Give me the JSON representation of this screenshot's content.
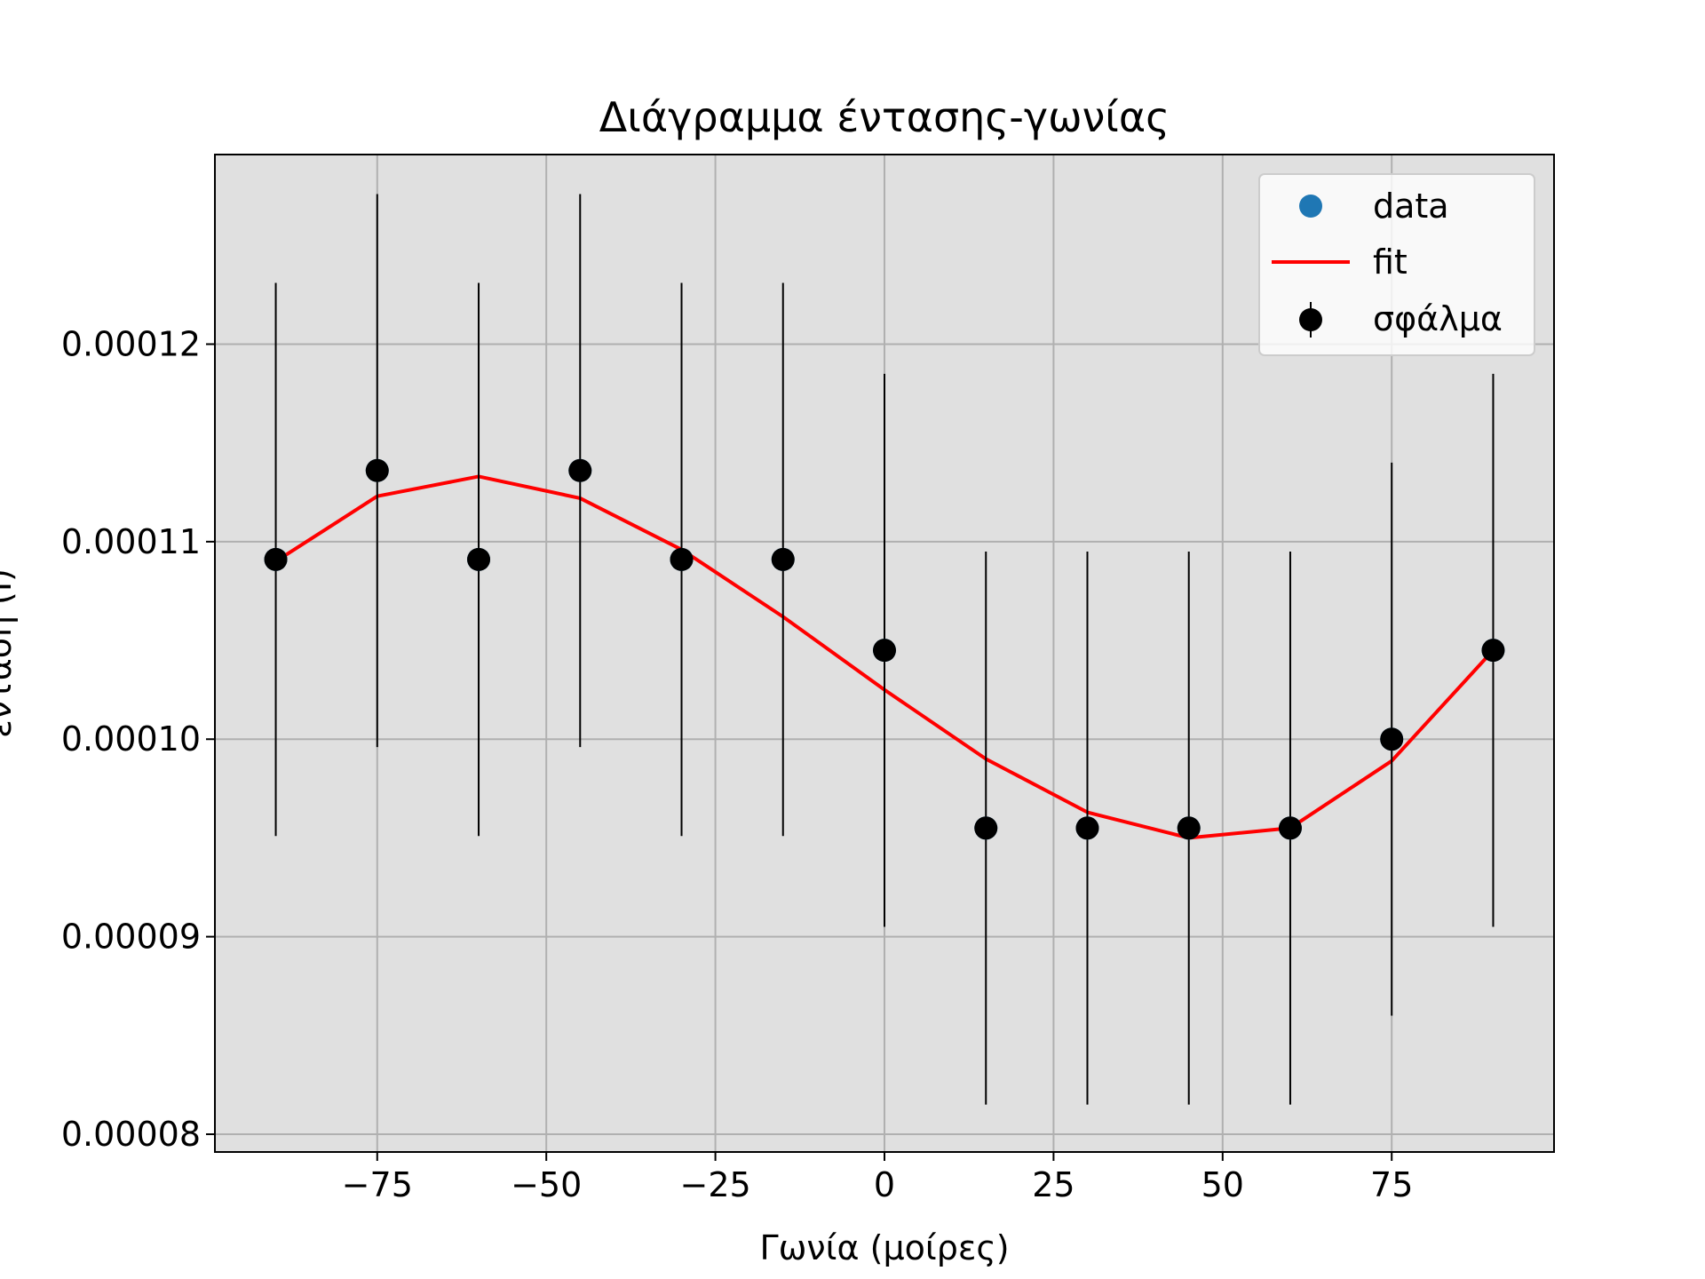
{
  "chart_data": {
    "type": "scatter",
    "title": "Διάγραμμα έντασης-γωνίας",
    "xlabel": "Γωνία (μοίρες)",
    "ylabel": "ένταση (I)",
    "xlim": [
      -99,
      99
    ],
    "ylim": [
      7.91e-05,
      0.0001296
    ],
    "xticks": [
      -75,
      -50,
      -25,
      0,
      25,
      50,
      75
    ],
    "xtick_labels": [
      "−75",
      "−50",
      "−25",
      "0",
      "25",
      "50",
      "75"
    ],
    "yticks": [
      8e-05,
      9e-05,
      0.0001,
      0.00011,
      0.00012
    ],
    "ytick_labels": [
      "0.00008",
      "0.00009",
      "0.00010",
      "0.00011",
      "0.00012"
    ],
    "grid": true,
    "background": "#e0e0e0",
    "legend_position": "top-right",
    "series": [
      {
        "name": "data",
        "kind": "scatter",
        "color": "#1f77b4",
        "x": [
          -90,
          -75,
          -60,
          -45,
          -30,
          -15,
          0,
          15,
          30,
          45,
          60,
          75,
          90
        ],
        "y": [
          0.0001091,
          0.0001136,
          0.0001091,
          0.0001136,
          0.0001091,
          0.0001091,
          0.0001045,
          9.55e-05,
          9.55e-05,
          9.55e-05,
          9.55e-05,
          0.0001,
          0.0001045
        ]
      },
      {
        "name": "fit",
        "kind": "line",
        "color": "#ff0000",
        "x": [
          -90,
          -75,
          -60,
          -45,
          -30,
          -15,
          0,
          15,
          30,
          45,
          60,
          75,
          90
        ],
        "y": [
          0.000109,
          0.0001123,
          0.0001133,
          0.0001122,
          0.0001096,
          0.0001062,
          0.0001025,
          9.9e-05,
          9.63e-05,
          9.5e-05,
          9.55e-05,
          9.89e-05,
          0.0001045
        ]
      },
      {
        "name": "σφάλμα",
        "kind": "errorbar",
        "color": "#000000",
        "x": [
          -90,
          -75,
          -60,
          -45,
          -30,
          -15,
          0,
          15,
          30,
          45,
          60,
          75,
          90
        ],
        "y": [
          0.0001091,
          0.0001136,
          0.0001091,
          0.0001136,
          0.0001091,
          0.0001091,
          0.0001045,
          9.55e-05,
          9.55e-05,
          9.55e-05,
          9.55e-05,
          0.0001,
          0.0001045
        ],
        "yerr": [
          1.4e-05,
          1.4e-05,
          1.4e-05,
          1.4e-05,
          1.4e-05,
          1.4e-05,
          1.4e-05,
          1.4e-05,
          1.4e-05,
          1.4e-05,
          1.4e-05,
          1.4e-05,
          1.4e-05
        ]
      }
    ]
  }
}
